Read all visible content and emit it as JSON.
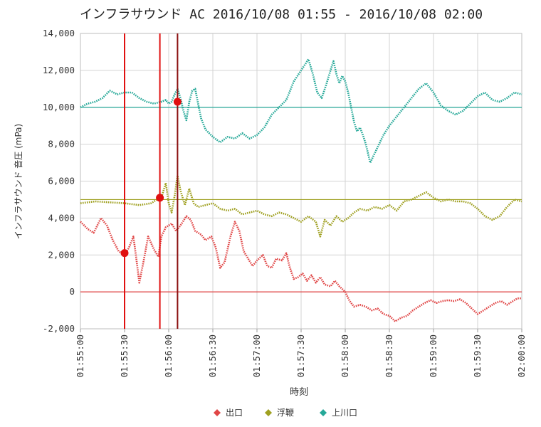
{
  "chart_data": {
    "type": "line",
    "title": "インフラサウンド AC 2016/10/08 01:55 - 2016/10/08 02:00",
    "xlabel": "時刻",
    "ylabel": "インフラサウンド 音圧 (mPa)",
    "ylim": [
      -2000,
      14000
    ],
    "xlim": [
      "01:55:00",
      "02:00:00"
    ],
    "y_ticks": [
      "-2,000",
      "0",
      "2,000",
      "4,000",
      "6,000",
      "8,000",
      "10,000",
      "12,000",
      "14,000"
    ],
    "x_ticks": [
      "01:55:00",
      "01:55:30",
      "01:56:00",
      "01:56:30",
      "01:57:00",
      "01:57:30",
      "01:58:00",
      "01:58:30",
      "01:59:00",
      "01:59:30",
      "02:00:00"
    ],
    "grid": true,
    "legend_position": "bottom",
    "colors": {
      "出口": "#e04545",
      "浮鞭": "#9fa020",
      "上川口": "#25a898",
      "marker_line": "#e01010"
    },
    "series": [
      {
        "name": "出口",
        "baseline": 0,
        "points": [
          [
            "01:55:00",
            3800
          ],
          [
            "01:55:05",
            3400
          ],
          [
            "01:55:09",
            3200
          ],
          [
            "01:55:14",
            4000
          ],
          [
            "01:55:18",
            3600
          ],
          [
            "01:55:22",
            2800
          ],
          [
            "01:55:26",
            2200
          ],
          [
            "01:55:30",
            2000
          ],
          [
            "01:55:33",
            2400
          ],
          [
            "01:55:36",
            3000
          ],
          [
            "01:55:38",
            1800
          ],
          [
            "01:55:40",
            500
          ],
          [
            "01:55:43",
            1700
          ],
          [
            "01:55:46",
            3000
          ],
          [
            "01:55:50",
            2300
          ],
          [
            "01:55:53",
            1900
          ],
          [
            "01:55:55",
            3000
          ],
          [
            "01:55:58",
            3500
          ],
          [
            "01:56:02",
            3700
          ],
          [
            "01:56:05",
            3300
          ],
          [
            "01:56:08",
            3600
          ],
          [
            "01:56:12",
            4100
          ],
          [
            "01:56:15",
            3900
          ],
          [
            "01:56:18",
            3300
          ],
          [
            "01:56:22",
            3100
          ],
          [
            "01:56:25",
            2800
          ],
          [
            "01:56:29",
            3000
          ],
          [
            "01:56:32",
            2400
          ],
          [
            "01:56:35",
            1300
          ],
          [
            "01:56:38",
            1600
          ],
          [
            "01:56:42",
            3000
          ],
          [
            "01:56:45",
            3800
          ],
          [
            "01:56:48",
            3300
          ],
          [
            "01:56:51",
            2200
          ],
          [
            "01:56:54",
            1800
          ],
          [
            "01:56:57",
            1400
          ],
          [
            "01:57:00",
            1700
          ],
          [
            "01:57:04",
            2000
          ],
          [
            "01:57:07",
            1400
          ],
          [
            "01:57:10",
            1300
          ],
          [
            "01:57:13",
            1800
          ],
          [
            "01:57:17",
            1700
          ],
          [
            "01:57:20",
            2100
          ],
          [
            "01:57:22",
            1400
          ],
          [
            "01:57:25",
            700
          ],
          [
            "01:57:28",
            800
          ],
          [
            "01:57:31",
            1000
          ],
          [
            "01:57:34",
            600
          ],
          [
            "01:57:37",
            900
          ],
          [
            "01:57:40",
            500
          ],
          [
            "01:57:43",
            800
          ],
          [
            "01:57:46",
            400
          ],
          [
            "01:57:50",
            300
          ],
          [
            "01:57:53",
            600
          ],
          [
            "01:57:56",
            300
          ],
          [
            "01:58:00",
            0
          ],
          [
            "01:58:03",
            -500
          ],
          [
            "01:58:06",
            -800
          ],
          [
            "01:58:10",
            -700
          ],
          [
            "01:58:14",
            -800
          ],
          [
            "01:58:18",
            -1000
          ],
          [
            "01:58:22",
            -900
          ],
          [
            "01:58:26",
            -1200
          ],
          [
            "01:58:30",
            -1300
          ],
          [
            "01:58:34",
            -1600
          ],
          [
            "01:58:38",
            -1400
          ],
          [
            "01:58:42",
            -1300
          ],
          [
            "01:58:46",
            -1000
          ],
          [
            "01:58:50",
            -800
          ],
          [
            "01:58:54",
            -600
          ],
          [
            "01:58:58",
            -450
          ],
          [
            "01:59:02",
            -600
          ],
          [
            "01:59:06",
            -500
          ],
          [
            "01:59:10",
            -450
          ],
          [
            "01:59:14",
            -500
          ],
          [
            "01:59:18",
            -400
          ],
          [
            "01:59:22",
            -600
          ],
          [
            "01:59:26",
            -900
          ],
          [
            "01:59:30",
            -1200
          ],
          [
            "01:59:34",
            -1000
          ],
          [
            "01:59:38",
            -800
          ],
          [
            "01:59:42",
            -600
          ],
          [
            "01:59:46",
            -500
          ],
          [
            "01:59:50",
            -700
          ],
          [
            "01:59:54",
            -500
          ],
          [
            "01:59:57",
            -350
          ],
          [
            "02:00:00",
            -350
          ]
        ]
      },
      {
        "name": "浮鞭",
        "baseline": 5000,
        "points": [
          [
            "01:55:00",
            4800
          ],
          [
            "01:55:10",
            4900
          ],
          [
            "01:55:20",
            4850
          ],
          [
            "01:55:30",
            4800
          ],
          [
            "01:55:40",
            4700
          ],
          [
            "01:55:48",
            4800
          ],
          [
            "01:55:52",
            5000
          ],
          [
            "01:55:55",
            5100
          ],
          [
            "01:55:58",
            5900
          ],
          [
            "01:56:00",
            4800
          ],
          [
            "01:56:02",
            4300
          ],
          [
            "01:56:04",
            5200
          ],
          [
            "01:56:06",
            6300
          ],
          [
            "01:56:08",
            5500
          ],
          [
            "01:56:11",
            4700
          ],
          [
            "01:56:14",
            5600
          ],
          [
            "01:56:17",
            4800
          ],
          [
            "01:56:20",
            4600
          ],
          [
            "01:56:25",
            4700
          ],
          [
            "01:56:30",
            4800
          ],
          [
            "01:56:35",
            4500
          ],
          [
            "01:56:40",
            4400
          ],
          [
            "01:56:45",
            4500
          ],
          [
            "01:56:50",
            4200
          ],
          [
            "01:56:55",
            4300
          ],
          [
            "01:57:00",
            4400
          ],
          [
            "01:57:05",
            4200
          ],
          [
            "01:57:10",
            4100
          ],
          [
            "01:57:15",
            4300
          ],
          [
            "01:57:20",
            4200
          ],
          [
            "01:57:25",
            4000
          ],
          [
            "01:57:30",
            3800
          ],
          [
            "01:57:35",
            4100
          ],
          [
            "01:57:40",
            3800
          ],
          [
            "01:57:43",
            3000
          ],
          [
            "01:57:46",
            3900
          ],
          [
            "01:57:50",
            3600
          ],
          [
            "01:57:54",
            4100
          ],
          [
            "01:57:58",
            3800
          ],
          [
            "01:58:02",
            4000
          ],
          [
            "01:58:06",
            4300
          ],
          [
            "01:58:10",
            4500
          ],
          [
            "01:58:15",
            4400
          ],
          [
            "01:58:20",
            4600
          ],
          [
            "01:58:25",
            4500
          ],
          [
            "01:58:30",
            4700
          ],
          [
            "01:58:35",
            4400
          ],
          [
            "01:58:40",
            4900
          ],
          [
            "01:58:45",
            5000
          ],
          [
            "01:58:50",
            5200
          ],
          [
            "01:58:55",
            5400
          ],
          [
            "01:59:00",
            5100
          ],
          [
            "01:59:05",
            4900
          ],
          [
            "01:59:10",
            5000
          ],
          [
            "01:59:15",
            4900
          ],
          [
            "01:59:20",
            4900
          ],
          [
            "01:59:25",
            4800
          ],
          [
            "01:59:30",
            4500
          ],
          [
            "01:59:35",
            4100
          ],
          [
            "01:59:40",
            3900
          ],
          [
            "01:59:45",
            4100
          ],
          [
            "01:59:50",
            4600
          ],
          [
            "01:59:55",
            5000
          ],
          [
            "02:00:00",
            4900
          ]
        ]
      },
      {
        "name": "上川口",
        "baseline": 10000,
        "points": [
          [
            "01:55:00",
            10000
          ],
          [
            "01:55:05",
            10200
          ],
          [
            "01:55:10",
            10300
          ],
          [
            "01:55:15",
            10500
          ],
          [
            "01:55:20",
            10900
          ],
          [
            "01:55:25",
            10700
          ],
          [
            "01:55:30",
            10800
          ],
          [
            "01:55:35",
            10800
          ],
          [
            "01:55:40",
            10500
          ],
          [
            "01:55:45",
            10300
          ],
          [
            "01:55:50",
            10200
          ],
          [
            "01:55:55",
            10300
          ],
          [
            "01:55:58",
            10400
          ],
          [
            "01:56:00",
            10200
          ],
          [
            "01:56:02",
            10300
          ],
          [
            "01:56:04",
            10700
          ],
          [
            "01:56:06",
            11000
          ],
          [
            "01:56:08",
            10500
          ],
          [
            "01:56:10",
            9800
          ],
          [
            "01:56:12",
            9300
          ],
          [
            "01:56:14",
            10300
          ],
          [
            "01:56:16",
            10900
          ],
          [
            "01:56:18",
            11000
          ],
          [
            "01:56:20",
            10200
          ],
          [
            "01:56:22",
            9400
          ],
          [
            "01:56:25",
            8800
          ],
          [
            "01:56:30",
            8400
          ],
          [
            "01:56:35",
            8100
          ],
          [
            "01:56:40",
            8400
          ],
          [
            "01:56:45",
            8300
          ],
          [
            "01:56:50",
            8600
          ],
          [
            "01:56:55",
            8300
          ],
          [
            "01:57:00",
            8500
          ],
          [
            "01:57:05",
            8900
          ],
          [
            "01:57:10",
            9600
          ],
          [
            "01:57:15",
            10000
          ],
          [
            "01:57:20",
            10400
          ],
          [
            "01:57:25",
            11400
          ],
          [
            "01:57:30",
            12000
          ],
          [
            "01:57:35",
            12600
          ],
          [
            "01:57:38",
            11800
          ],
          [
            "01:57:41",
            10800
          ],
          [
            "01:57:44",
            10500
          ],
          [
            "01:57:47",
            11200
          ],
          [
            "01:57:50",
            12000
          ],
          [
            "01:57:52",
            12500
          ],
          [
            "01:57:54",
            11800
          ],
          [
            "01:57:56",
            11300
          ],
          [
            "01:57:58",
            11700
          ],
          [
            "01:58:00",
            11400
          ],
          [
            "01:58:02",
            10800
          ],
          [
            "01:58:04",
            10000
          ],
          [
            "01:58:06",
            9200
          ],
          [
            "01:58:08",
            8700
          ],
          [
            "01:58:10",
            8900
          ],
          [
            "01:58:12",
            8500
          ],
          [
            "01:58:14",
            8000
          ],
          [
            "01:58:17",
            7000
          ],
          [
            "01:58:20",
            7500
          ],
          [
            "01:58:23",
            8000
          ],
          [
            "01:58:26",
            8500
          ],
          [
            "01:58:30",
            9000
          ],
          [
            "01:58:35",
            9500
          ],
          [
            "01:58:40",
            10000
          ],
          [
            "01:58:45",
            10500
          ],
          [
            "01:58:50",
            11000
          ],
          [
            "01:58:55",
            11300
          ],
          [
            "01:59:00",
            10800
          ],
          [
            "01:59:05",
            10100
          ],
          [
            "01:59:10",
            9800
          ],
          [
            "01:59:15",
            9600
          ],
          [
            "01:59:20",
            9800
          ],
          [
            "01:59:25",
            10200
          ],
          [
            "01:59:30",
            10600
          ],
          [
            "01:59:35",
            10800
          ],
          [
            "01:59:40",
            10400
          ],
          [
            "01:59:45",
            10300
          ],
          [
            "01:59:50",
            10500
          ],
          [
            "01:59:55",
            10800
          ],
          [
            "02:00:00",
            10700
          ]
        ]
      }
    ],
    "markers": [
      {
        "series": "出口",
        "x": "01:55:30",
        "y": 2100
      },
      {
        "series": "浮鞭",
        "x": "01:55:54",
        "y": 5100
      },
      {
        "series": "上川口",
        "x": "01:56:06",
        "y": 10300
      }
    ],
    "vertical_lines": [
      "01:55:30",
      "01:55:54",
      "01:56:06"
    ]
  }
}
